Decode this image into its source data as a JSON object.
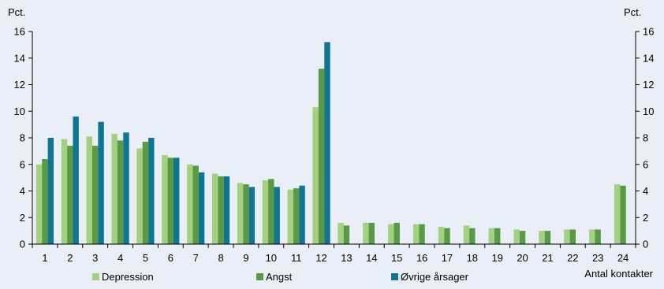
{
  "chart_data": {
    "type": "bar",
    "ylabel_left": "Pct.",
    "ylabel_right": "Pct.",
    "xlabel": "Antal kontakter",
    "ylim": [
      0,
      16
    ],
    "yticks": [
      0,
      2,
      4,
      6,
      8,
      10,
      12,
      14,
      16
    ],
    "categories": [
      "1",
      "2",
      "3",
      "4",
      "5",
      "6",
      "7",
      "8",
      "9",
      "10",
      "11",
      "12",
      "13",
      "14",
      "15",
      "16",
      "17",
      "18",
      "19",
      "20",
      "21",
      "22",
      "23",
      "24"
    ],
    "series": [
      {
        "name": "Depression",
        "color": "#a4d17f",
        "values": [
          6.0,
          7.9,
          8.1,
          8.3,
          7.2,
          6.7,
          6.0,
          5.3,
          4.6,
          4.8,
          4.1,
          10.3,
          1.6,
          1.6,
          1.5,
          1.5,
          1.3,
          1.4,
          1.2,
          1.1,
          1.0,
          1.1,
          1.1,
          4.5
        ]
      },
      {
        "name": "Angst",
        "color": "#5a9a46",
        "values": [
          6.4,
          7.4,
          7.4,
          7.8,
          7.7,
          6.5,
          5.9,
          5.1,
          4.5,
          4.9,
          4.2,
          13.2,
          1.4,
          1.6,
          1.6,
          1.5,
          1.2,
          1.2,
          1.2,
          1.0,
          1.0,
          1.1,
          1.1,
          4.4
        ]
      },
      {
        "name": "Øvrige årsager",
        "color": "#0f7590",
        "values": [
          8.0,
          9.6,
          9.2,
          8.4,
          8.0,
          6.5,
          5.4,
          5.1,
          4.3,
          4.3,
          4.4,
          15.2,
          null,
          null,
          null,
          null,
          null,
          null,
          null,
          null,
          null,
          null,
          null,
          null
        ]
      }
    ],
    "legend": {
      "placement": "bottom"
    },
    "grid": false
  }
}
